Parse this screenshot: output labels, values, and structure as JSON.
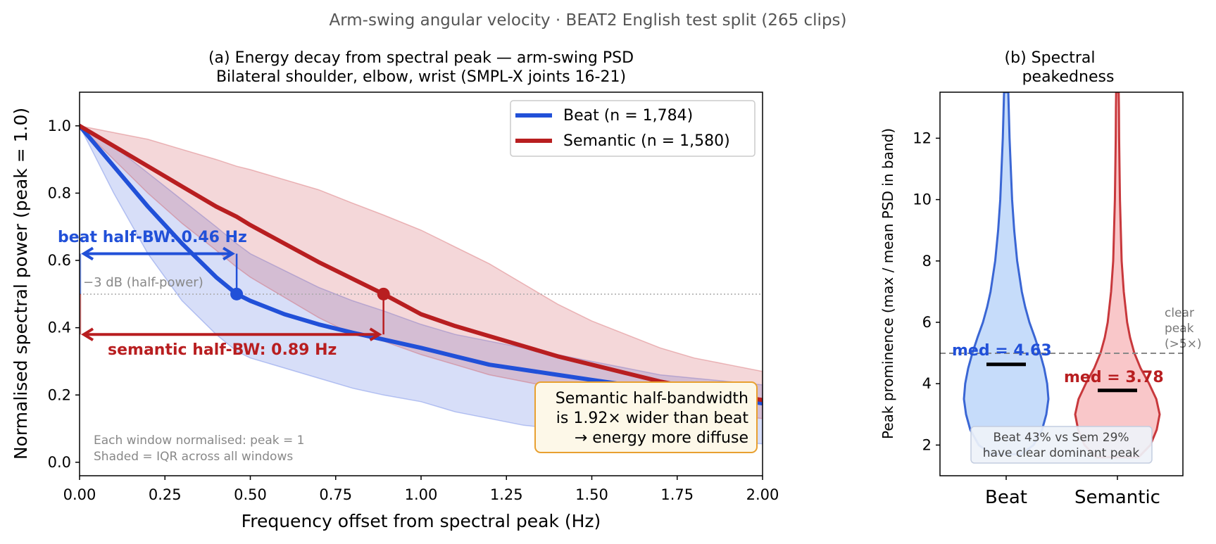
{
  "figure": {
    "suptitle": "Arm-swing angular velocity  ·  BEAT2 English test split (265 clips)"
  },
  "colors": {
    "beat": "#2150d8",
    "semantic": "#b81e20",
    "beat_fill": "#4a6be0",
    "semantic_fill": "#cd4b50",
    "beat_violin_fill": "#c6dcfa",
    "beat_violin_edge": "#3a66d4",
    "semantic_violin_fill": "#f9c7c9",
    "semantic_violin_edge": "#c8383c",
    "callout_bg": "#fdf8e8",
    "callout_border": "#e8a030",
    "gray_text": "#888888"
  },
  "chart_data": [
    {
      "type": "line",
      "title_line1": "(a)  Energy decay from spectral peak — arm-swing PSD",
      "title_line2": "Bilateral shoulder, elbow, wrist  (SMPL-X joints 16-21)",
      "xlabel": "Frequency offset from spectral peak (Hz)",
      "ylabel": "Normalised spectral power  (peak = 1.0)",
      "xlim": [
        0,
        2.0
      ],
      "ylim": [
        -0.04,
        1.1
      ],
      "xticks": [
        "0.00",
        "0.25",
        "0.50",
        "0.75",
        "1.00",
        "1.25",
        "1.50",
        "1.75",
        "2.00"
      ],
      "yticks": [
        "0.0",
        "0.2",
        "0.4",
        "0.6",
        "0.8",
        "1.0"
      ],
      "grid": false,
      "legend_position": "top-right",
      "x": [
        0,
        0.1,
        0.2,
        0.3,
        0.4,
        0.46,
        0.5,
        0.6,
        0.7,
        0.8,
        0.89,
        1.0,
        1.1,
        1.2,
        1.3,
        1.4,
        1.5,
        1.6,
        1.7,
        1.8,
        1.9,
        2.0
      ],
      "series": [
        {
          "key": "beat",
          "name": "Beat  (n = 1,784)",
          "values": [
            1.0,
            0.88,
            0.76,
            0.65,
            0.55,
            0.5,
            0.48,
            0.44,
            0.41,
            0.385,
            0.365,
            0.34,
            0.315,
            0.29,
            0.275,
            0.26,
            0.245,
            0.23,
            0.22,
            0.205,
            0.19,
            0.175
          ],
          "q1": [
            1.0,
            0.8,
            0.62,
            0.48,
            0.38,
            0.33,
            0.31,
            0.28,
            0.25,
            0.22,
            0.2,
            0.18,
            0.15,
            0.13,
            0.11,
            0.1,
            0.09,
            0.08,
            0.07,
            0.065,
            0.06,
            0.055
          ],
          "q3": [
            1.0,
            0.94,
            0.86,
            0.78,
            0.7,
            0.65,
            0.62,
            0.57,
            0.52,
            0.48,
            0.45,
            0.41,
            0.38,
            0.36,
            0.34,
            0.32,
            0.3,
            0.28,
            0.26,
            0.25,
            0.24,
            0.23
          ]
        },
        {
          "key": "semantic",
          "name": "Semantic  (n = 1,580)",
          "values": [
            1.0,
            0.94,
            0.88,
            0.82,
            0.76,
            0.73,
            0.705,
            0.65,
            0.595,
            0.545,
            0.5,
            0.44,
            0.405,
            0.375,
            0.345,
            0.315,
            0.29,
            0.265,
            0.24,
            0.22,
            0.2,
            0.185
          ],
          "q1": [
            1.0,
            0.9,
            0.8,
            0.71,
            0.63,
            0.58,
            0.55,
            0.49,
            0.43,
            0.38,
            0.36,
            0.32,
            0.29,
            0.26,
            0.24,
            0.22,
            0.2,
            0.18,
            0.16,
            0.15,
            0.14,
            0.13
          ],
          "q3": [
            1.0,
            0.98,
            0.96,
            0.93,
            0.9,
            0.88,
            0.87,
            0.84,
            0.81,
            0.77,
            0.735,
            0.69,
            0.64,
            0.59,
            0.53,
            0.47,
            0.42,
            0.38,
            0.34,
            0.31,
            0.29,
            0.27
          ]
        }
      ],
      "half_power_line": {
        "y": 0.5,
        "label": "−3 dB  (half-power)"
      },
      "markers": [
        {
          "series": "beat",
          "x": 0.46,
          "y": 0.5
        },
        {
          "series": "semantic",
          "x": 0.89,
          "y": 0.5
        }
      ],
      "annotations": {
        "beat_halfbw": {
          "label": "beat half-BW: 0.46 Hz",
          "x_from": 0.0,
          "x_to": 0.46,
          "y": 0.62
        },
        "semantic_halfbw": {
          "label": "semantic half-BW: 0.89 Hz",
          "x_from": 0.0,
          "x_to": 0.89,
          "y": 0.38
        },
        "footnote_line1": "Each window normalised: peak = 1",
        "footnote_line2": "Shaded = IQR across all windows",
        "callout_line1": "Semantic half-bandwidth",
        "callout_line2": "is 1.92× wider than beat",
        "callout_line3": "→ energy more diffuse"
      }
    },
    {
      "type": "violin",
      "title_line1": "(b)  Spectral",
      "title_line2": "peakedness",
      "ylabel": "Peak prominence  (max / mean PSD in band)",
      "categories": [
        "Beat",
        "Semantic"
      ],
      "ylim": [
        1.0,
        13.5
      ],
      "yticks": [
        "2",
        "4",
        "6",
        "8",
        "10",
        "12"
      ],
      "medians": [
        4.63,
        3.78
      ],
      "median_labels": [
        "med = 4.63",
        "med = 3.78"
      ],
      "threshold": {
        "y": 5.0,
        "label_line1": "clear",
        "label_line2": "peak",
        "label_line3": "(>5×)"
      },
      "note_line1": "Beat 43% vs Sem 29%",
      "note_line2": "have clear dominant peak",
      "violin_profiles": [
        {
          "y": [
            1.7,
            2.0,
            2.5,
            3.0,
            3.5,
            4.0,
            4.5,
            5.0,
            5.5,
            6.0,
            6.5,
            7.0,
            8.0,
            9.0,
            10.0,
            11.0,
            12.0,
            13.0,
            13.5
          ],
          "halfwidth": [
            0.35,
            0.65,
            0.85,
            0.95,
            1.0,
            0.97,
            0.9,
            0.8,
            0.68,
            0.55,
            0.45,
            0.37,
            0.26,
            0.19,
            0.14,
            0.11,
            0.08,
            0.06,
            0.05
          ]
        },
        {
          "y": [
            1.6,
            2.0,
            2.5,
            3.0,
            3.5,
            4.0,
            4.5,
            5.0,
            5.5,
            6.0,
            7.0,
            8.0,
            9.0,
            10.0,
            11.0,
            12.0,
            13.0,
            13.5
          ],
          "halfwidth": [
            0.5,
            0.78,
            0.93,
            1.0,
            0.92,
            0.75,
            0.55,
            0.4,
            0.3,
            0.23,
            0.15,
            0.1,
            0.08,
            0.06,
            0.05,
            0.04,
            0.035,
            0.03
          ]
        }
      ]
    }
  ]
}
